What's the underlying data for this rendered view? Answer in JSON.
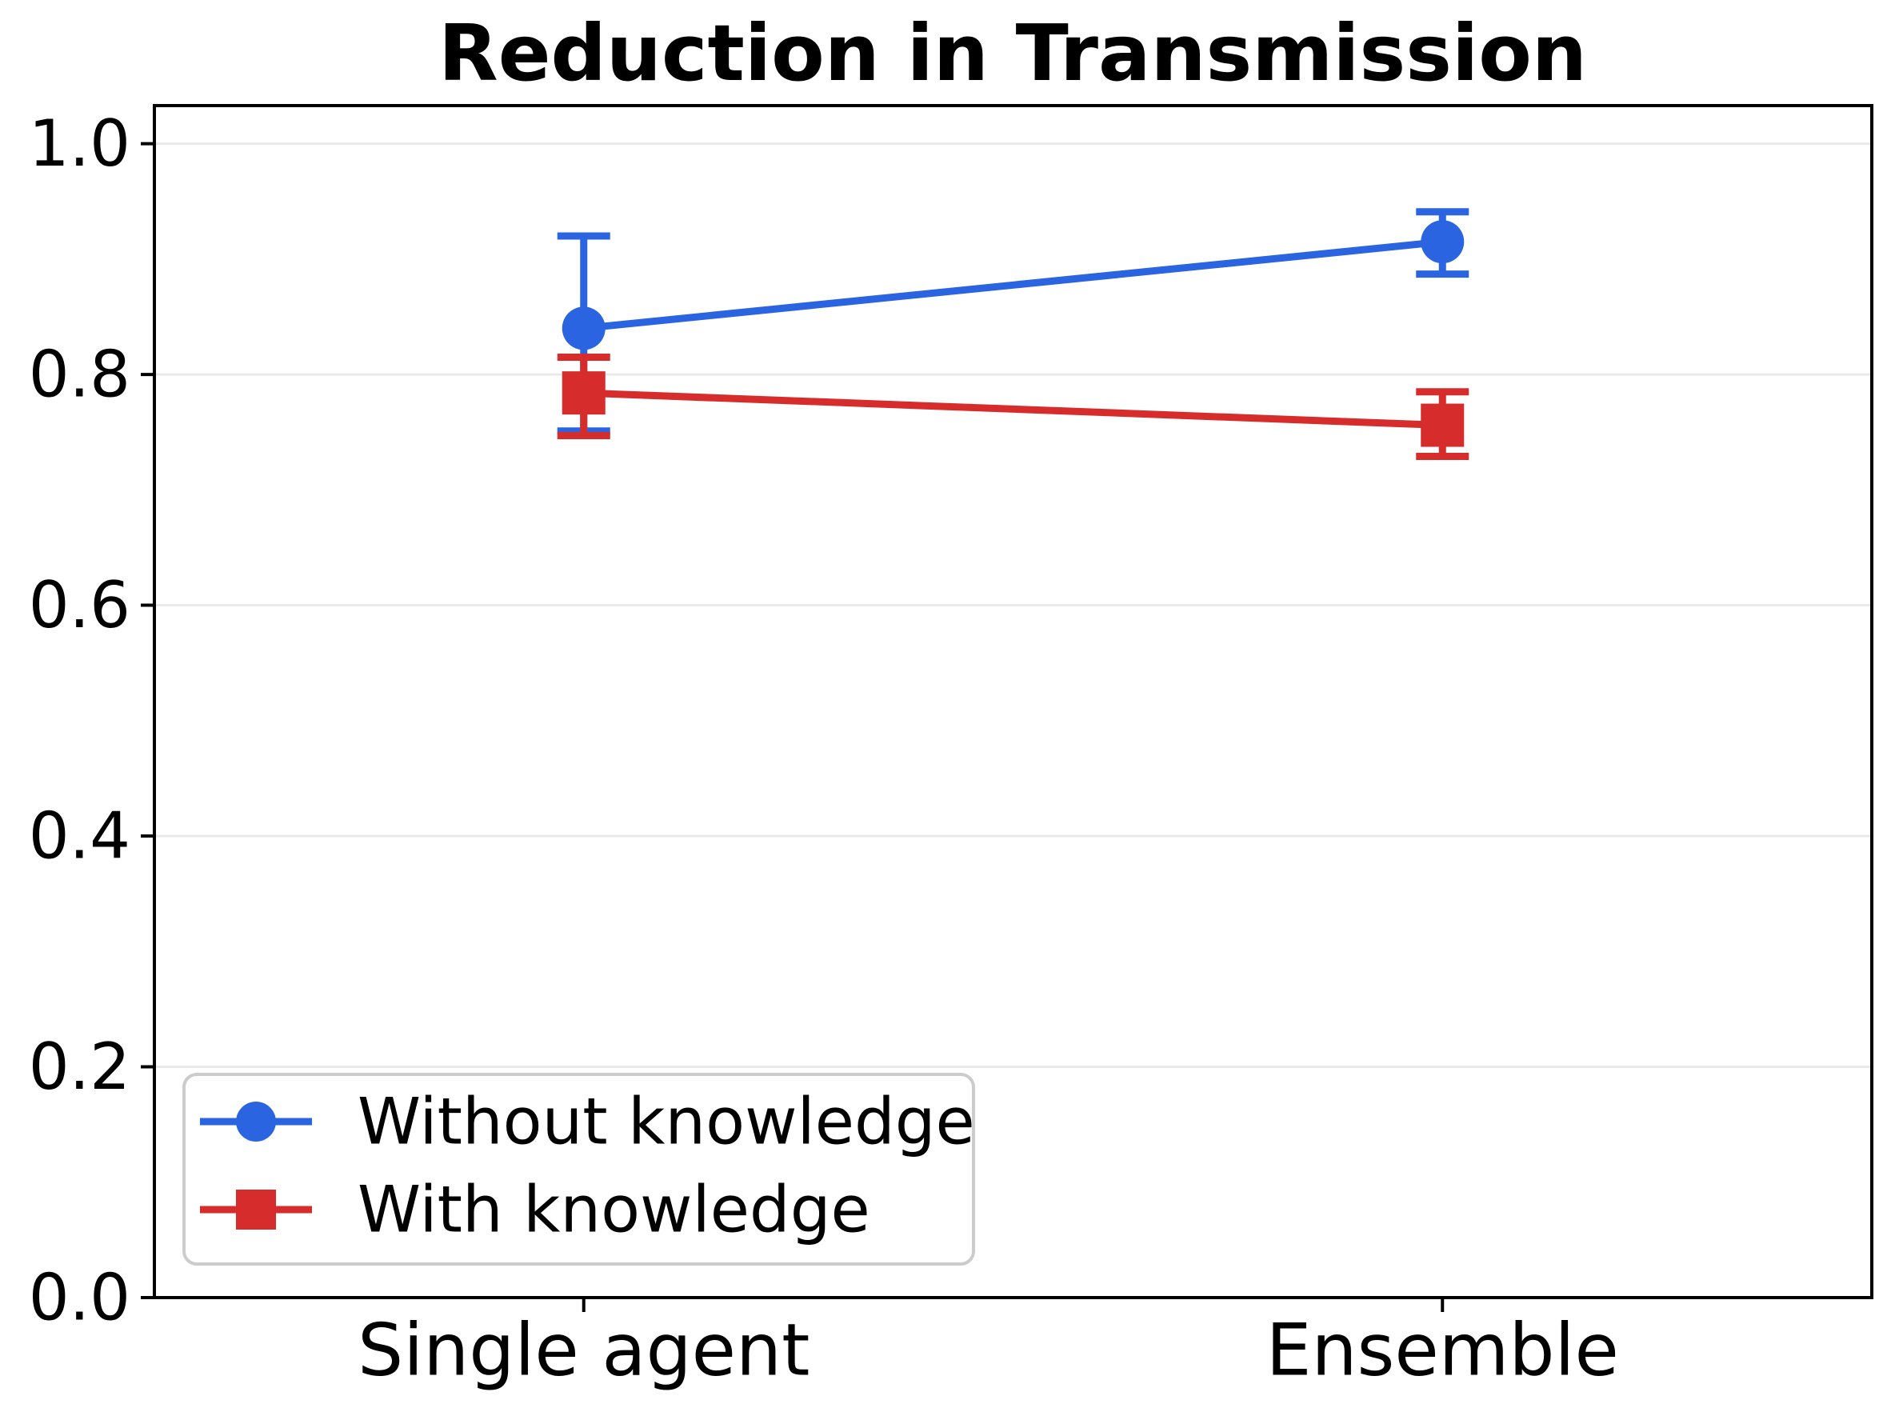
{
  "chart_data": {
    "type": "line",
    "title": "Reduction in Transmission",
    "categories": [
      "Single agent",
      "Ensemble"
    ],
    "series": [
      {
        "name": "Without knowledge",
        "color": "#2a64e0",
        "marker": "circle",
        "values": [
          0.84,
          0.915
        ],
        "err_lo": [
          0.751,
          0.887
        ],
        "err_hi": [
          0.92,
          0.941
        ]
      },
      {
        "name": "With knowledge",
        "color": "#d72c2c",
        "marker": "square",
        "values": [
          0.784,
          0.756
        ],
        "err_lo": [
          0.747,
          0.729
        ],
        "err_hi": [
          0.815,
          0.785
        ]
      }
    ],
    "xlabel": "",
    "ylabel": "",
    "ylim": [
      0,
      1.033
    ],
    "yticks": [
      0.0,
      0.2,
      0.4,
      0.6,
      0.8,
      1.0
    ],
    "ytick_labels": [
      "0.0",
      "0.2",
      "0.4",
      "0.6",
      "0.8",
      "1.0"
    ],
    "grid": "horizontal-light",
    "gridline_color": "#e9e9e9",
    "axis_color": "#000000",
    "legend_position": "lower-left"
  }
}
